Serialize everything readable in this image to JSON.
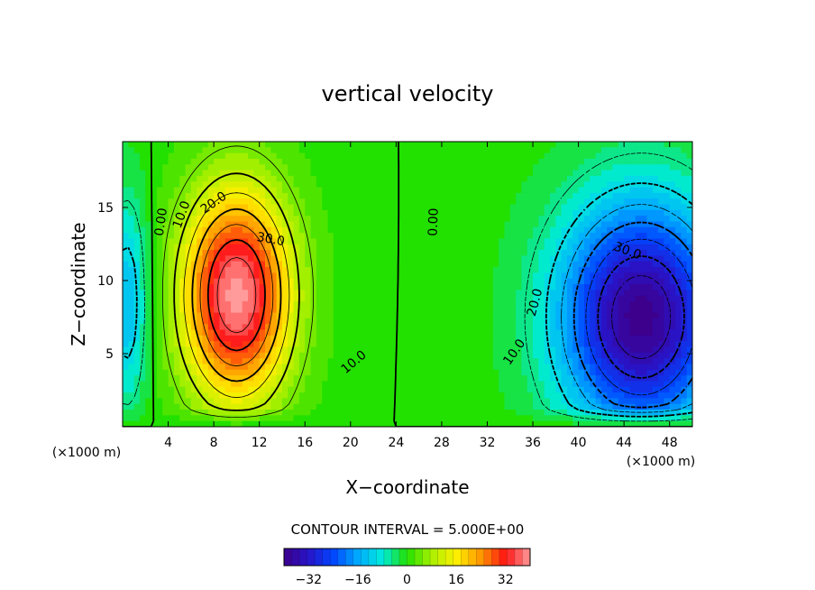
{
  "chart_data": {
    "type": "heatmap",
    "title": "vertical velocity",
    "xlabel": "X−coordinate",
    "ylabel": "Z−coordinate",
    "x_unit_left": "(×1000 m)",
    "x_unit_right": "(×1000 m)",
    "xlim": [
      0,
      50
    ],
    "ylim": [
      0,
      19.5
    ],
    "x_ticks": [
      4,
      8,
      12,
      16,
      20,
      24,
      28,
      32,
      36,
      40,
      44,
      48
    ],
    "y_ticks": [
      5,
      10,
      15
    ],
    "contour_interval_label": "CONTOUR INTERVAL = 5.000E+00",
    "contour_interval": 5,
    "value_range": [
      -40,
      40
    ],
    "colorbar_ticks": [
      "−32",
      "−16",
      "0",
      "16",
      "32"
    ],
    "colorbar_tick_values": [
      -32,
      -16,
      0,
      16,
      32
    ],
    "contour_labels": [
      {
        "text": "0.00",
        "x": 3.4,
        "z": 14.0,
        "angle": -82
      },
      {
        "text": "10.0",
        "x": 5.2,
        "z": 14.5,
        "angle": -70
      },
      {
        "text": "20.0",
        "x": 8.0,
        "z": 15.3,
        "angle": -35
      },
      {
        "text": "30.0",
        "x": 13.0,
        "z": 12.8,
        "angle": 10
      },
      {
        "text": "10.0",
        "x": 20.3,
        "z": 4.4,
        "angle": -40
      },
      {
        "text": "0.00",
        "x": 27.3,
        "z": 14.0,
        "angle": -88
      },
      {
        "text": "30.0",
        "x": 44.3,
        "z": 12.0,
        "angle": 20
      },
      {
        "text": "20.0",
        "x": 36.2,
        "z": 8.5,
        "angle": -75
      },
      {
        "text": "10.0",
        "x": 34.4,
        "z": 5.1,
        "angle": -55
      }
    ],
    "colors": {
      "background": "#ffffff",
      "axis": "#000000",
      "positive_max": "#ff9a9a",
      "zero": "#22e000",
      "negative_min": "#3a0090"
    }
  }
}
